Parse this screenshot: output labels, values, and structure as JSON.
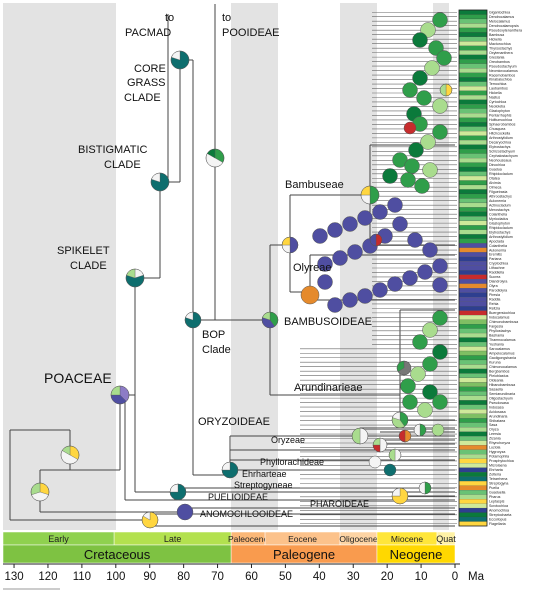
{
  "labels": {
    "to_pacmad_1": "to",
    "to_pacmad_2": "PACMAD",
    "to_pooideae_1": "to",
    "to_pooideae_2": "POOIDEAE",
    "core_1": "CORE",
    "core_2": "GRASS",
    "core_3": "CLADE",
    "bist_1": "BISTIGMATIC",
    "bist_2": "CLADE",
    "spike_1": "SPIKELET",
    "spike_2": "CLADE",
    "poaceae": "POACEAE",
    "bop_1": "BOP",
    "bop_2": "Clade",
    "bambuseae": "Bambuseae",
    "olyreae": "Olyreae",
    "bambusoideae": "BAMBUSOIDEAE",
    "arundinarieae": "Arundinarieae",
    "oryzoideae": "ORYZOIDEAE",
    "oryzeae": "Oryzeae",
    "phyllorachideae": "Phyllorachideae",
    "ehrharteae": "Ehrharteae",
    "streptogyneae": "Streptogyneae",
    "puelioideae": "PUELIOIDEAE",
    "pharoideae": "PHAROIDEAE",
    "anomochlooideae": "ANOMOCHLOOIDEAE"
  },
  "timescale": {
    "epochs": [
      {
        "name": "Early",
        "from": 135,
        "to": 100.5,
        "color": "#8fd14f"
      },
      {
        "name": "Late",
        "from": 100.5,
        "to": 66,
        "color": "#b3e14f"
      },
      {
        "name": "Paleocene",
        "from": 66,
        "to": 56,
        "color": "#fbb878"
      },
      {
        "name": "Eocene",
        "from": 56,
        "to": 33.9,
        "color": "#fcc28b"
      },
      {
        "name": "Oligocene",
        "from": 33.9,
        "to": 23,
        "color": "#fdd4a4"
      },
      {
        "name": "Miocene",
        "from": 23,
        "to": 5.3,
        "color": "#ffe63a"
      },
      {
        "name": "Quat",
        "from": 5.3,
        "to": 0,
        "color": "#fff2a6"
      }
    ],
    "periods": [
      {
        "name": "Cretaceous",
        "from": 135,
        "to": 66,
        "color": "#7ec242"
      },
      {
        "name": "Paleogene",
        "from": 66,
        "to": 23,
        "color": "#f99b4e"
      },
      {
        "name": "Neogene",
        "from": 23,
        "to": 0,
        "color": "#ffd800"
      }
    ],
    "ticks": [
      130,
      120,
      110,
      100,
      90,
      80,
      70,
      60,
      50,
      40,
      30,
      20,
      10,
      0
    ],
    "unit": "Ma"
  },
  "taxa": [
    "Gigantochloa",
    "Dendrocalamus",
    "Melocalamus",
    "Dendrocalamopsis",
    "Pseudoxytenanthera",
    "Bambusa",
    "Hickelia",
    "Macturochloa",
    "Thyrsostachys",
    "Oxytenanthera",
    "Greslania",
    "Oreobambos",
    "Pseudostachyum",
    "Neomicrocalamus",
    "Racemobambos",
    "Kinabaluchloa",
    "Temochloa",
    "Laobambos",
    "Hickelia",
    "Nastus",
    "Cyrtochloa",
    "Neololeba",
    "Glaziophyton",
    "Pentarrhaphis",
    "Holttumochloa",
    "Sphaerobambos",
    "Chusquea",
    "Hitchcockella",
    "Arthrostylidium",
    "Decaryochloa",
    "Elytrostachys",
    "Schizostachyum",
    "Cephalostachyum",
    "Neohouzeaua",
    "Dinochloa",
    "Guadua",
    "Rhipidocladum",
    "Otatea",
    "Alvimia",
    "Olmeca",
    "Filgueirasia",
    "Athroostachys",
    "Aulonemia",
    "Actinocladum",
    "Merostachys",
    "Colanthelia",
    "Myriocladus",
    "Glaziophyton",
    "Rhipidocladum",
    "Elytrostachys",
    "Arthrostylidium",
    "Apoclada",
    "Colanthelia",
    "Aulonemia",
    "Eremitis",
    "Pariana",
    "Cryptochloa",
    "Lithachne",
    "Raddiella",
    "Sucrea",
    "Diandrolyra",
    "Olyra",
    "Parodiolyra",
    "Piresia",
    "Raddia",
    "Rehia",
    "Reitzia",
    "Buergersiochloa",
    "Indocalamus",
    "Chimonobambusa",
    "Fargesia",
    "Phyllostachys",
    "Bashania",
    "Thamnocalamus",
    "Yushania",
    "Sarocalamus",
    "Ampelocalamus",
    "Gaoligongshania",
    "Kuruna",
    "Chimonocalamus",
    "Bergbambos",
    "Pleioblastus",
    "Oldeania",
    "Hibanobambusa",
    "Sasaella",
    "Semiarundinaria",
    "Oligostachyum",
    "Pseudosasa",
    "Indosasa",
    "Acidosasa",
    "Arundinaria",
    "Shibataea",
    "Sasa",
    "Oryza",
    "Leersia",
    "Zizania",
    "Rhynchoryza",
    "Luziola",
    "Hygroryza",
    "Potamophila",
    "Prosphytochloa",
    "Microlaena",
    "Ehrharta",
    "Zotleria",
    "Tetrarrhena",
    "Streptogyna",
    "Puelia",
    "Guaduella",
    "Pharus",
    "Leptaspis",
    "Scrotochloa",
    "Anomochloa",
    "Streptochaeta",
    "Eccoilopus",
    "Flagellaria"
  ]
}
